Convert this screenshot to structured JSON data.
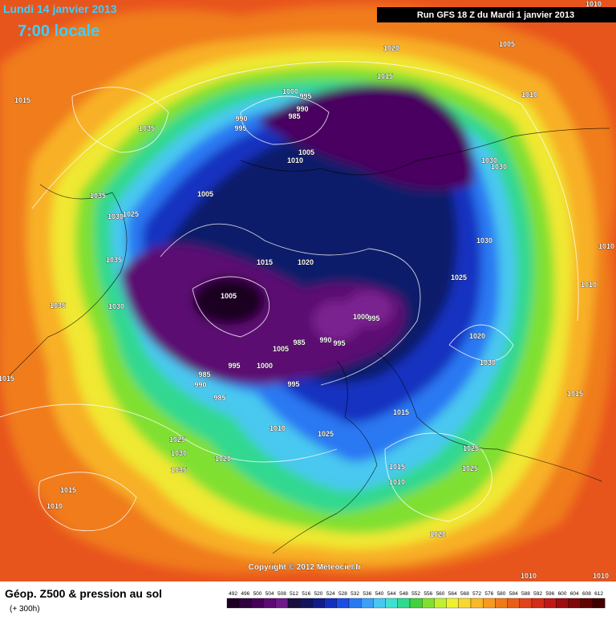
{
  "header": {
    "date": "Lundi 14 janvier 2013",
    "time": "7:00 locale",
    "run": "Run GFS 18 Z du Mardi 1 janvier 2013"
  },
  "footer": {
    "title": "Géop. Z500 & pression au sol",
    "lead": "(+ 300h)",
    "copyright": "Copyright © 2012 Meteociel.fr"
  },
  "colorbar": {
    "values": [
      492,
      496,
      500,
      504,
      508,
      512,
      516,
      520,
      524,
      528,
      532,
      536,
      540,
      544,
      548,
      552,
      556,
      560,
      564,
      568,
      572,
      576,
      580,
      584,
      588,
      592,
      596,
      600,
      604,
      608,
      612
    ],
    "colors": [
      "#1c0024",
      "#30003e",
      "#460058",
      "#5c0a72",
      "#6e1a8a",
      "#1a1040",
      "#14145e",
      "#101c8a",
      "#1430c0",
      "#1c4ee6",
      "#2a78f2",
      "#3ca0f6",
      "#48c8f0",
      "#40e0d0",
      "#30d890",
      "#40d040",
      "#80e030",
      "#c0f030",
      "#f0f030",
      "#f8d830",
      "#f8b828",
      "#f89a20",
      "#f07a18",
      "#e85e18",
      "#e04418",
      "#d42c18",
      "#c01818",
      "#a00c10",
      "#800808",
      "#600404",
      "#400000"
    ]
  },
  "isobar_labels": [
    1010,
    1005,
    1020,
    1015,
    1010,
    1000,
    995,
    990,
    985,
    990,
    995,
    1005,
    1010,
    1030,
    1030,
    1005,
    1035,
    1030,
    1025,
    1035,
    1015,
    1020,
    1030,
    1010,
    1025,
    1010,
    1005,
    1035,
    1030,
    1000,
    995,
    1020,
    985,
    990,
    995,
    1005,
    1030,
    995,
    1000,
    985,
    990,
    985,
    995,
    1015,
    1015,
    1015,
    1010,
    1025,
    1025,
    1030,
    1020,
    1035,
    1025,
    1015,
    1025,
    1010,
    1015,
    1010,
    1020,
    1010,
    1010,
    1015,
    1035
  ]
}
